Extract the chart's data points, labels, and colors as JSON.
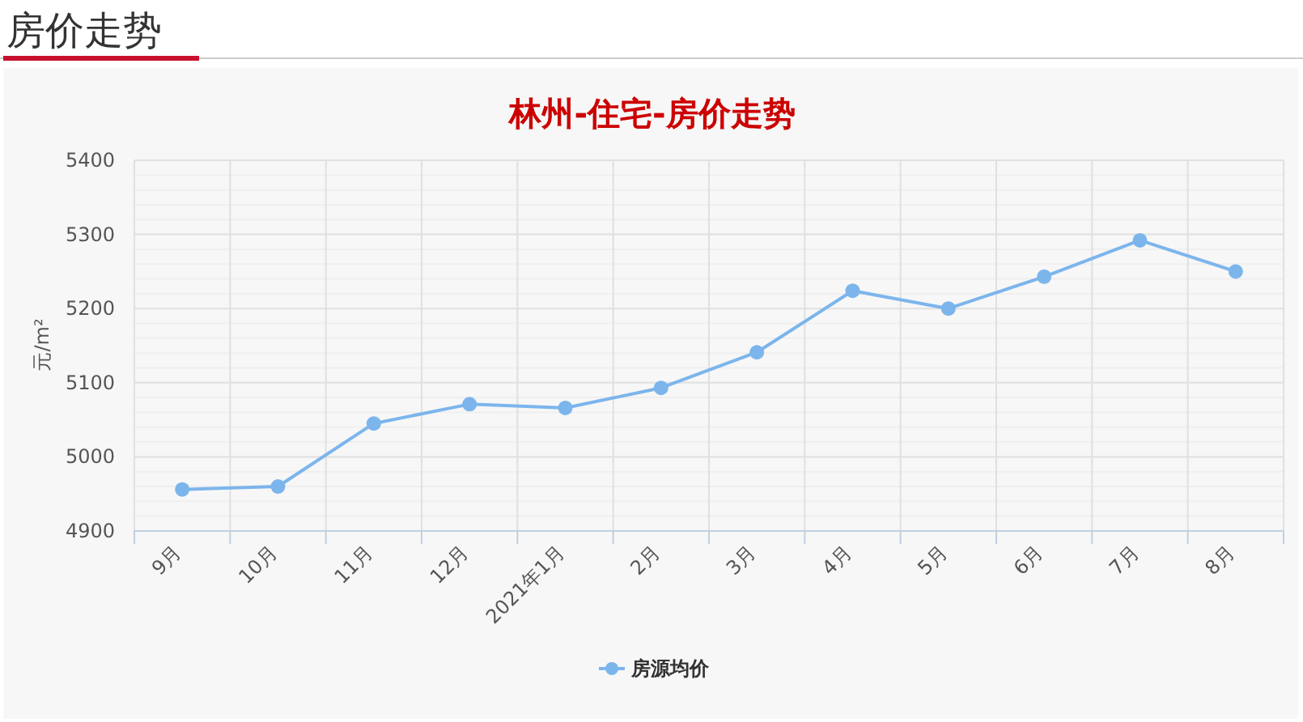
{
  "chart_data": {
    "type": "line",
    "title": "林州-住宅-房价走势",
    "ylabel": "元/m²",
    "annotations": [
      "房价走势"
    ],
    "categories": [
      "9月",
      "10月",
      "11月",
      "12月",
      "2021年1月",
      "2月",
      "3月",
      "4月",
      "5月",
      "6月",
      "7月",
      "8月"
    ],
    "series": [
      {
        "name": "房源均价",
        "color": "#7cb5ec",
        "values": [
          4956,
          4960,
          5045,
          5071,
          5066,
          5093,
          5141,
          5224,
          5200,
          5243,
          5292,
          5250
        ]
      }
    ],
    "ylim": [
      4900,
      5400
    ],
    "yticks": [
      4900,
      5000,
      5100,
      5200,
      5300,
      5400
    ],
    "grid": true,
    "legend": "bottom",
    "marker": "circle"
  }
}
